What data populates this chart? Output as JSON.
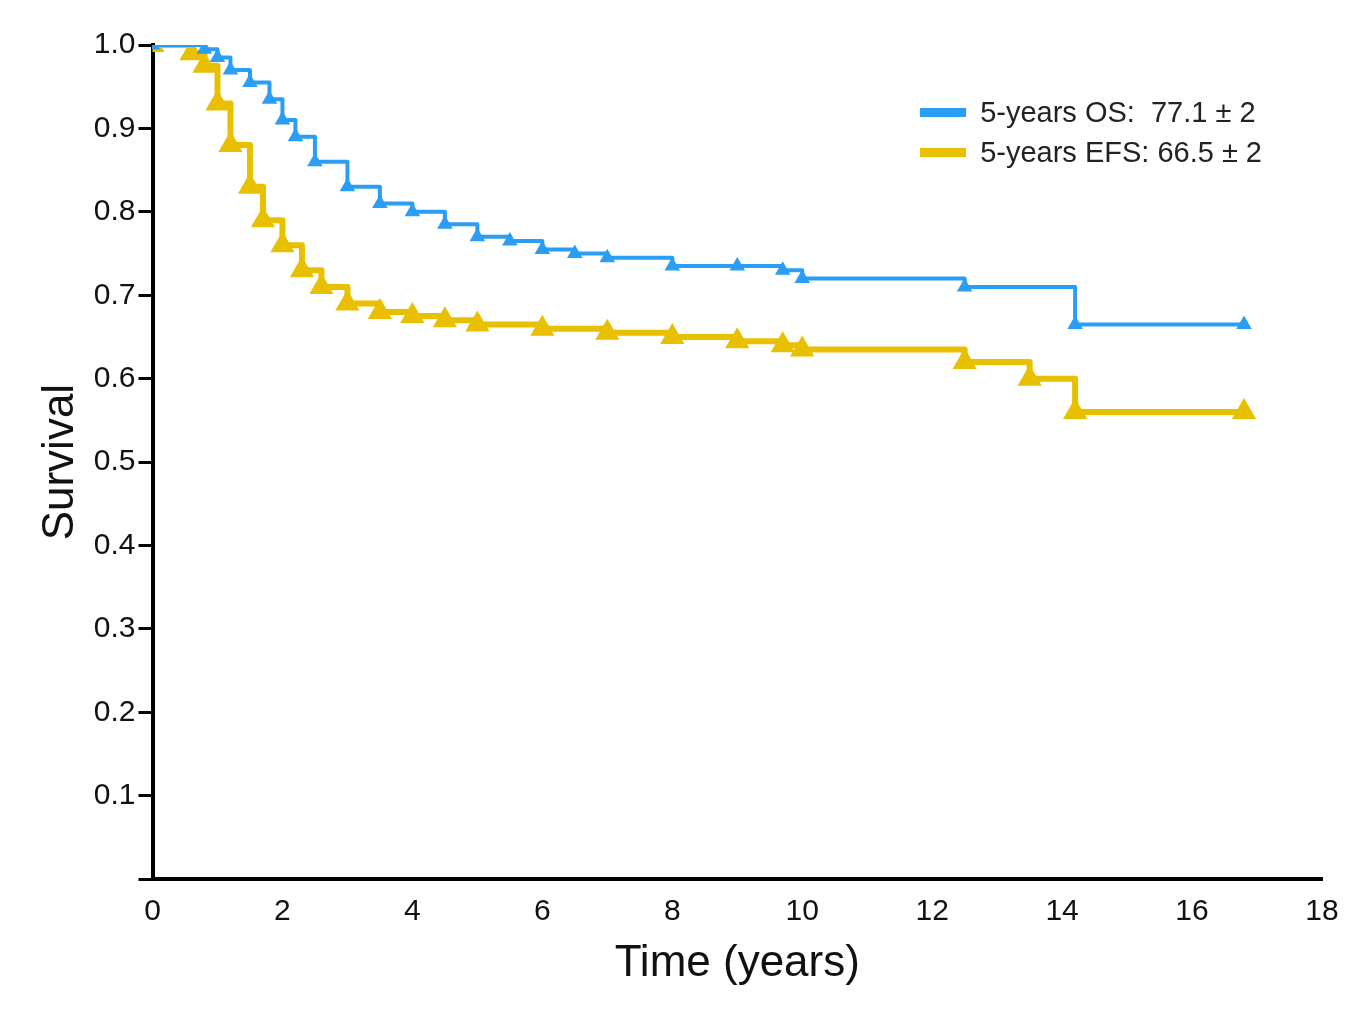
{
  "chart_data": {
    "type": "step",
    "xlabel": "Time (years)",
    "ylabel": "Survival",
    "xlim": [
      0,
      18
    ],
    "xticks": [
      0,
      2,
      4,
      6,
      8,
      10,
      12,
      14,
      16,
      18
    ],
    "ylim": [
      0,
      1.0
    ],
    "yticks": [
      {
        "value": 0,
        "label": null
      },
      0.1,
      0.2,
      0.3,
      0.4,
      0.5,
      0.6,
      0.7,
      0.8,
      0.9,
      {
        "value": 1.0,
        "label": "1.0"
      }
    ],
    "grid": false,
    "legend": "top right",
    "marker": "triangle",
    "line_style": "solid",
    "series": [
      {
        "name": "5-years OS:  77.1 ± 2",
        "color": "#2a9df4",
        "x": [
          0,
          0.8,
          1.0,
          1.2,
          1.5,
          1.8,
          2.0,
          2.2,
          2.5,
          3.0,
          3.5,
          4.0,
          4.5,
          5.0,
          5.5,
          6.0,
          6.5,
          7.0,
          8.0,
          9.0,
          9.7,
          10.0,
          12.5,
          14.2,
          16.8
        ],
        "values": [
          1.0,
          0.995,
          0.985,
          0.97,
          0.955,
          0.935,
          0.91,
          0.89,
          0.86,
          0.83,
          0.81,
          0.8,
          0.785,
          0.77,
          0.765,
          0.755,
          0.75,
          0.745,
          0.735,
          0.735,
          0.73,
          0.72,
          0.71,
          0.665,
          0.665
        ]
      },
      {
        "name": "5-years EFS: 66.5 ± 2",
        "color": "#e8c000",
        "x": [
          0,
          0.6,
          0.8,
          1.0,
          1.2,
          1.5,
          1.7,
          2.0,
          2.3,
          2.6,
          3.0,
          3.5,
          4.0,
          4.5,
          5.0,
          6.0,
          7.0,
          8.0,
          9.0,
          9.7,
          10.0,
          12.5,
          13.5,
          14.2,
          16.8
        ],
        "values": [
          1.0,
          0.99,
          0.975,
          0.93,
          0.88,
          0.83,
          0.79,
          0.76,
          0.73,
          0.71,
          0.69,
          0.68,
          0.675,
          0.67,
          0.665,
          0.66,
          0.655,
          0.65,
          0.645,
          0.64,
          0.635,
          0.62,
          0.6,
          0.56,
          0.56
        ]
      }
    ]
  }
}
